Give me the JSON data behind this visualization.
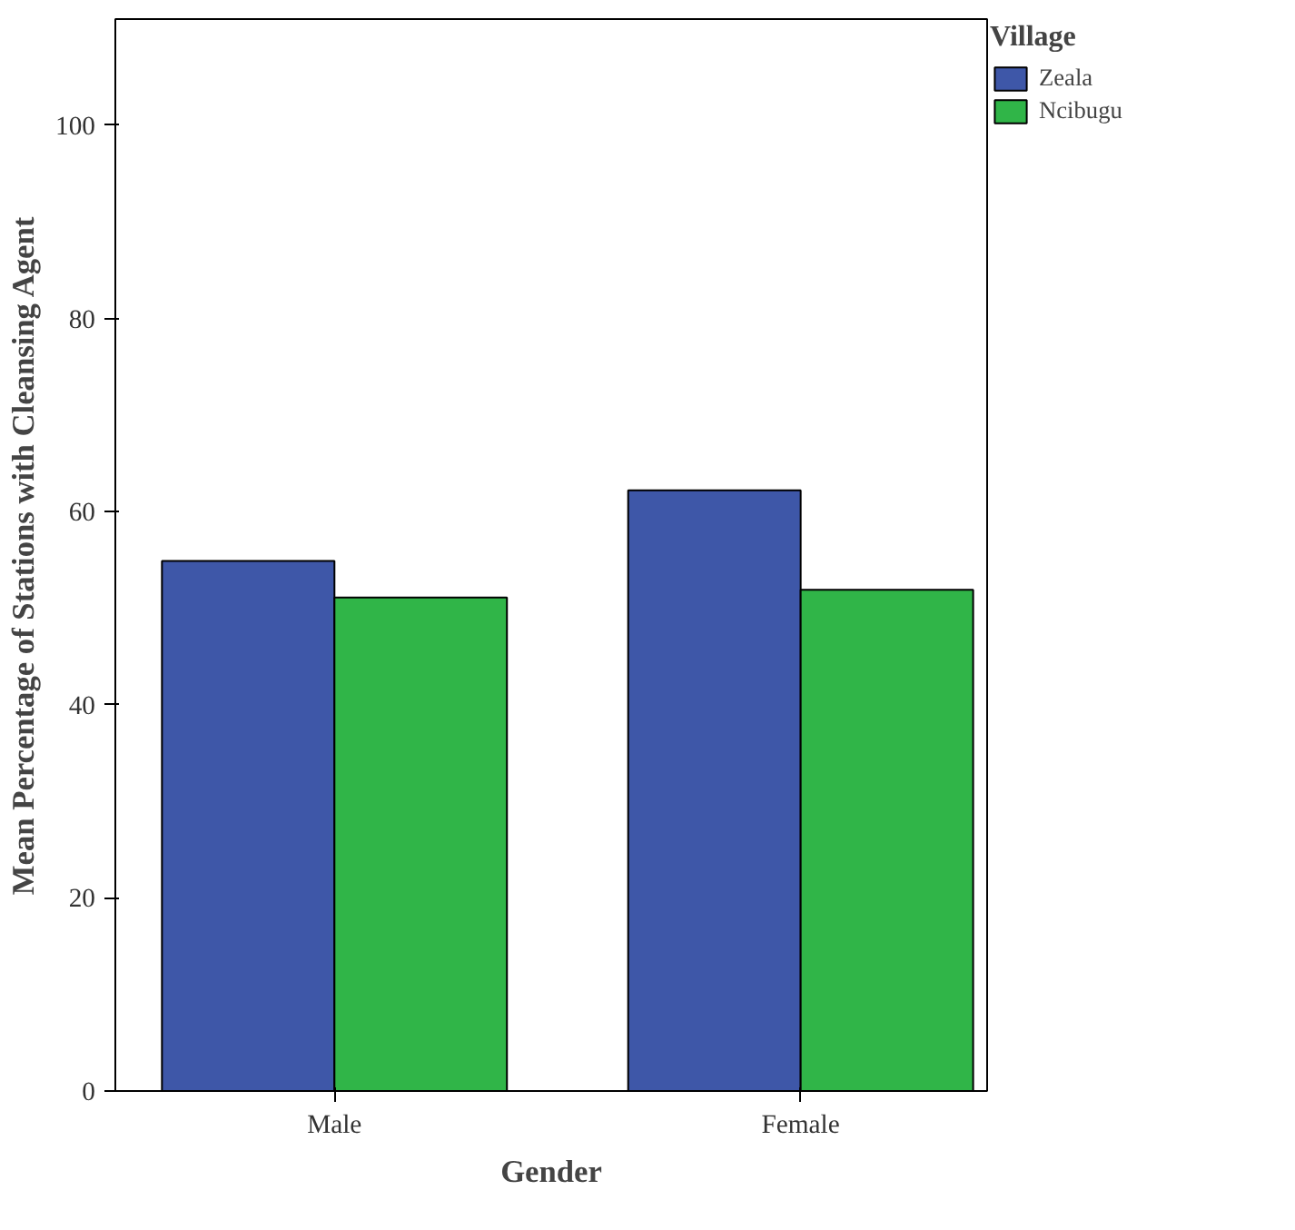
{
  "chart_data": {
    "type": "bar",
    "xlabel": "Gender",
    "ylabel": "Mean Percentage of Stations with Cleansing Agent",
    "legend_title": "Village",
    "categories": [
      "Male",
      "Female"
    ],
    "series": [
      {
        "name": "Zeala",
        "color": "#3e57a8",
        "values": [
          54.9,
          62.2
        ]
      },
      {
        "name": "Ncibugu",
        "color": "#30b548",
        "values": [
          51.1,
          51.9
        ]
      }
    ],
    "ylim": [
      0,
      111
    ],
    "yticks": [
      0,
      20,
      40,
      60,
      80,
      100
    ],
    "grid": false,
    "legend": "right"
  }
}
